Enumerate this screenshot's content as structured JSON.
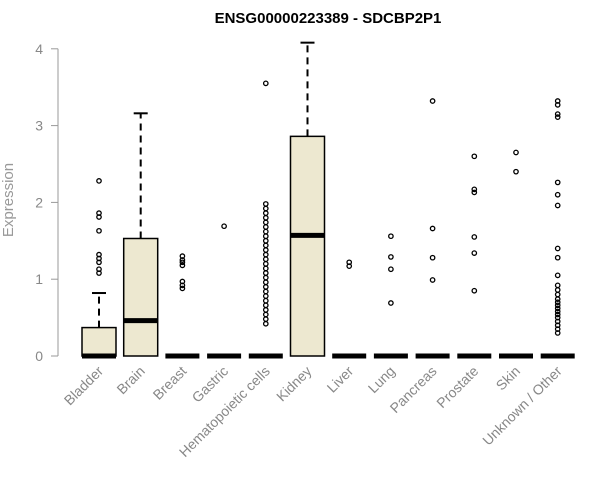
{
  "chart_data": {
    "type": "boxplot",
    "title": "ENSG00000223389 - SDCBP2P1",
    "xlabel": "",
    "ylabel": "Expression",
    "ylim": [
      0,
      4.1
    ],
    "yticks": [
      0,
      1,
      2,
      3,
      4
    ],
    "box_fill": "#ede8d0",
    "categories": [
      "Bladder",
      "Brain",
      "Breast",
      "Gastric",
      "Hematopoietic cells",
      "Kidney",
      "Liver",
      "Lung",
      "Pancreas",
      "Prostate",
      "Skin",
      "Unknown / Other"
    ],
    "boxes": [
      {
        "category": "Bladder",
        "min": 0,
        "q1": 0,
        "median": 0,
        "q3": 0.37,
        "max": 0.82,
        "outliers": [
          2.28,
          1.86,
          1.81,
          1.63,
          1.32,
          1.27,
          1.22,
          1.13,
          1.08
        ]
      },
      {
        "category": "Brain",
        "min": 0,
        "q1": 0,
        "median": 0.46,
        "q3": 1.53,
        "max": 3.16,
        "outliers": []
      },
      {
        "category": "Breast",
        "min": 0,
        "q1": 0,
        "median": 0,
        "q3": 0,
        "max": 0,
        "outliers": [
          1.3,
          1.25,
          1.22,
          1.18,
          0.97,
          0.92,
          0.88
        ]
      },
      {
        "category": "Gastric",
        "min": 0,
        "q1": 0,
        "median": 0,
        "q3": 0,
        "max": 0,
        "outliers": [
          1.69
        ]
      },
      {
        "category": "Hematopoietic cells",
        "min": 0,
        "q1": 0,
        "median": 0,
        "q3": 0,
        "max": 0,
        "outliers": [
          3.55,
          1.98,
          1.92,
          1.86,
          1.8,
          1.74,
          1.68,
          1.62,
          1.56,
          1.5,
          1.44,
          1.38,
          1.32,
          1.26,
          1.2,
          1.14,
          1.08,
          1.02,
          0.96,
          0.9,
          0.84,
          0.78,
          0.72,
          0.66,
          0.6,
          0.54,
          0.48,
          0.42
        ]
      },
      {
        "category": "Kidney",
        "min": 0,
        "q1": 0,
        "median": 1.57,
        "q3": 2.86,
        "max": 4.08,
        "outliers": []
      },
      {
        "category": "Liver",
        "min": 0,
        "q1": 0,
        "median": 0,
        "q3": 0,
        "max": 0,
        "outliers": [
          1.22,
          1.17
        ]
      },
      {
        "category": "Lung",
        "min": 0,
        "q1": 0,
        "median": 0,
        "q3": 0,
        "max": 0,
        "outliers": [
          1.56,
          1.29,
          1.13,
          0.69
        ]
      },
      {
        "category": "Pancreas",
        "min": 0,
        "q1": 0,
        "median": 0,
        "q3": 0,
        "max": 0,
        "outliers": [
          3.32,
          1.66,
          1.28,
          0.99
        ]
      },
      {
        "category": "Prostate",
        "min": 0,
        "q1": 0,
        "median": 0,
        "q3": 0,
        "max": 0,
        "outliers": [
          2.6,
          2.17,
          2.13,
          1.55,
          1.34,
          0.85
        ]
      },
      {
        "category": "Skin",
        "min": 0,
        "q1": 0,
        "median": 0,
        "q3": 0,
        "max": 0,
        "outliers": [
          2.65,
          2.4
        ]
      },
      {
        "category": "Unknown / Other",
        "min": 0,
        "q1": 0,
        "median": 0,
        "q3": 0,
        "max": 0,
        "outliers": [
          3.32,
          3.27,
          3.15,
          3.11,
          2.26,
          2.1,
          1.96,
          1.4,
          1.28,
          1.05,
          0.92,
          0.86,
          0.8,
          0.74,
          0.7,
          0.66,
          0.62,
          0.58,
          0.54,
          0.5,
          0.45,
          0.4,
          0.35,
          0.3
        ]
      }
    ]
  }
}
